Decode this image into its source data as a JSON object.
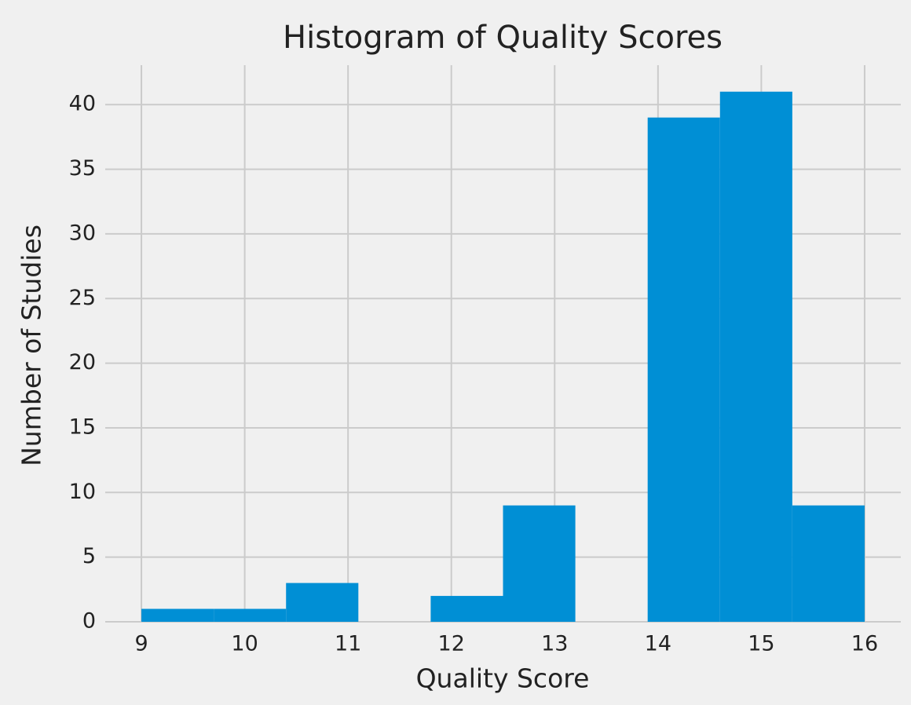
{
  "chart_data": {
    "type": "histogram",
    "title": "Histogram of Quality Scores",
    "x_label": "Quality Score",
    "y_label": "Number of Studies",
    "bins": [
      9,
      9.7,
      10.4,
      11.1,
      11.8,
      12.5,
      13.2,
      13.9,
      14.6,
      15.3,
      16
    ],
    "values": [
      1,
      1,
      3,
      0,
      2,
      9,
      0,
      39,
      41,
      9
    ],
    "color": "#008fd5",
    "xlim": [
      8.65,
      16.35
    ],
    "xticks": [
      9,
      10,
      11,
      12,
      13,
      14,
      15,
      16
    ],
    "ylim": [
      0,
      43.05
    ],
    "yticks": [
      0,
      5,
      10,
      15,
      20,
      25,
      30,
      35,
      40
    ],
    "grid": true
  }
}
